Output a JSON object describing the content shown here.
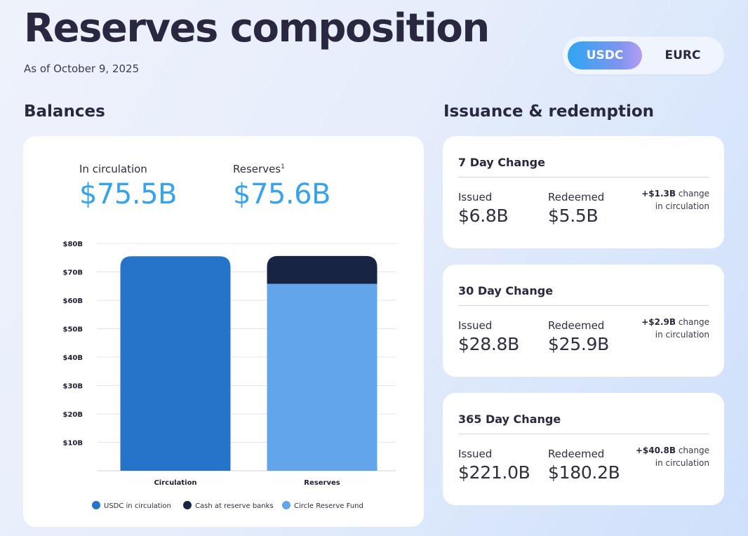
{
  "header": {
    "title": "Reserves composition",
    "as_of": "As of October 9, 2025"
  },
  "toggle": {
    "options": [
      "USDC",
      "EURC"
    ],
    "selected": "USDC"
  },
  "balances": {
    "section_title": "Balances",
    "circulation_label": "In circulation",
    "circulation_value": "$75.5B",
    "reserves_label": "Reserves",
    "reserves_footnote": "1",
    "reserves_value": "$75.6B"
  },
  "chart_data": {
    "type": "bar",
    "categories": [
      "Circulation",
      "Reserves"
    ],
    "stacked": true,
    "series": [
      {
        "name": "USDC in circulation",
        "color": "#2574c9",
        "values": [
          75.5,
          0
        ]
      },
      {
        "name": "Circle Reserve Fund",
        "color": "#62a5ea",
        "values": [
          0,
          65.8
        ]
      },
      {
        "name": "Cash at reserve banks",
        "color": "#172443",
        "values": [
          0,
          9.8
        ]
      }
    ],
    "legend": [
      {
        "name": "USDC in circulation",
        "color": "#2574c9"
      },
      {
        "name": "Cash at reserve banks",
        "color": "#172443"
      },
      {
        "name": "Circle Reserve Fund",
        "color": "#62a5ea"
      }
    ],
    "yticks": [
      "$10B",
      "$20B",
      "$30B",
      "$40B",
      "$50B",
      "$60B",
      "$70B",
      "$80B"
    ],
    "ytick_values": [
      10,
      20,
      30,
      40,
      50,
      60,
      70,
      80
    ],
    "ylim": [
      0,
      80
    ],
    "xlabel": "",
    "ylabel": "",
    "grid": true
  },
  "issuance": {
    "section_title": "Issuance & redemption",
    "issued_label": "Issued",
    "redeemed_label": "Redeemed",
    "change_suffix": "change in circulation",
    "cards": [
      {
        "title": "7 Day Change",
        "issued": "$6.8B",
        "redeemed": "$5.5B",
        "change": "+$1.3B"
      },
      {
        "title": "30 Day Change",
        "issued": "$28.8B",
        "redeemed": "$25.9B",
        "change": "+$2.9B"
      },
      {
        "title": "365 Day Change",
        "issued": "$221.0B",
        "redeemed": "$180.2B",
        "change": "+$40.8B"
      }
    ]
  }
}
